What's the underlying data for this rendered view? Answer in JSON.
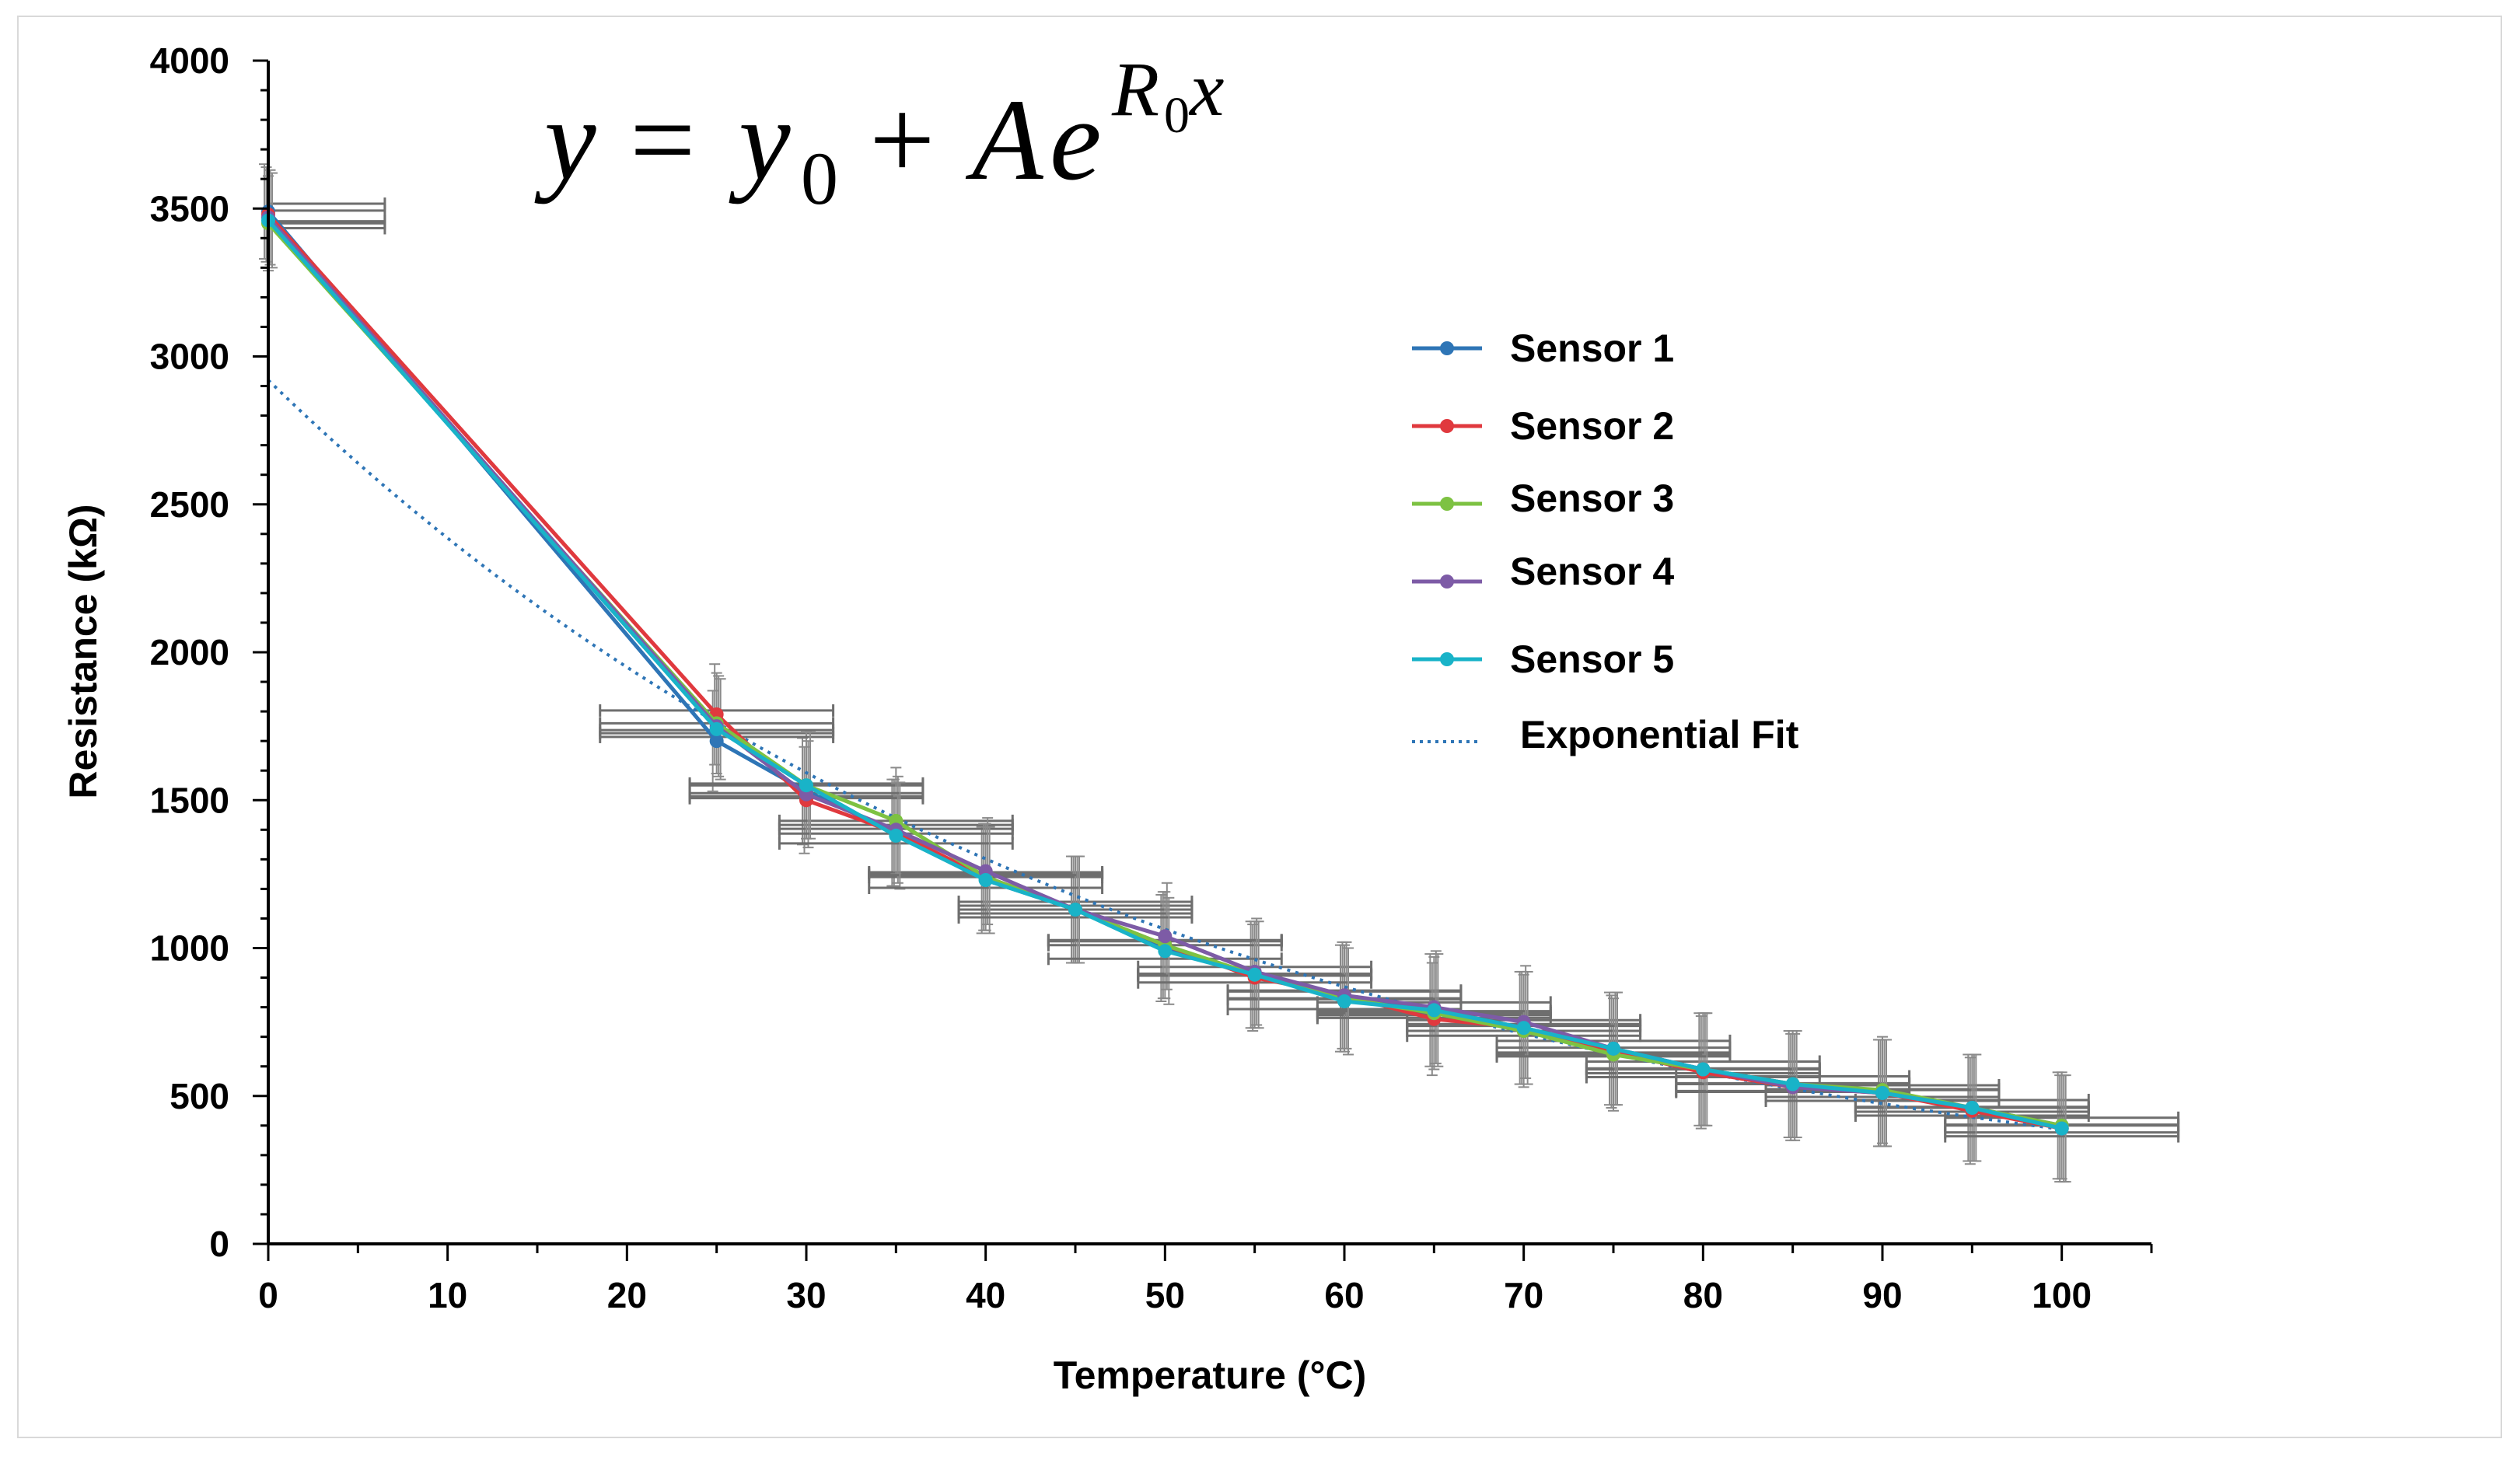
{
  "chart_data": {
    "type": "line",
    "title": "",
    "equation": {
      "lhs": "y",
      "eq": "=",
      "y": "y",
      "y_sub": "0",
      "plus": "+",
      "A": "A",
      "e": "e",
      "exp_R": "R",
      "exp_sub": "0",
      "exp_x": "x"
    },
    "xlabel": "Temperature (°C)",
    "ylabel": "Resistance (kΩ)",
    "xlim": [
      0,
      105
    ],
    "ylim": [
      0,
      4000
    ],
    "x_ticks": [
      "0",
      "10",
      "20",
      "30",
      "40",
      "50",
      "60",
      "70",
      "80",
      "90",
      "100"
    ],
    "x_tick_values": [
      0,
      10,
      20,
      30,
      40,
      50,
      60,
      70,
      80,
      90,
      100
    ],
    "y_ticks": [
      "0",
      "500",
      "1000",
      "1500",
      "2000",
      "2500",
      "3000",
      "3500",
      "4000"
    ],
    "y_tick_values": [
      0,
      500,
      1000,
      1500,
      2000,
      2500,
      3000,
      3500,
      4000
    ],
    "legend_position": "right",
    "x": [
      0,
      25,
      30,
      35,
      40,
      45,
      50,
      55,
      60,
      65,
      70,
      75,
      80,
      85,
      90,
      95,
      100
    ],
    "series": [
      {
        "name": "Sensor 1",
        "color": "#2e75b6",
        "values": [
          3490,
          1700,
          1530,
          1390,
          1230,
          1130,
          1000,
          910,
          830,
          790,
          730,
          660,
          590,
          540,
          510,
          460,
          400
        ]
      },
      {
        "name": "Sensor 2",
        "color": "#e0393e",
        "values": [
          3480,
          1790,
          1500,
          1390,
          1240,
          1130,
          1010,
          900,
          840,
          760,
          730,
          650,
          580,
          530,
          510,
          450,
          390
        ]
      },
      {
        "name": "Sensor 3",
        "color": "#7dc242",
        "values": [
          3450,
          1760,
          1550,
          1430,
          1240,
          1130,
          1010,
          910,
          830,
          780,
          720,
          640,
          590,
          540,
          520,
          460,
          400
        ]
      },
      {
        "name": "Sensor 4",
        "color": "#7d5ba6",
        "values": [
          3470,
          1750,
          1520,
          1400,
          1260,
          1130,
          1040,
          920,
          840,
          800,
          750,
          660,
          590,
          530,
          510,
          460,
          390
        ]
      },
      {
        "name": "Sensor 5",
        "color": "#19b3c8",
        "values": [
          3460,
          1740,
          1550,
          1380,
          1230,
          1130,
          990,
          910,
          820,
          790,
          730,
          660,
          590,
          540,
          510,
          460,
          390
        ]
      }
    ],
    "error_bars": {
      "x_error": [
        6.5,
        6.5,
        6.5,
        6.5,
        6.5,
        6.5,
        6.5,
        6.5,
        6.5,
        6.5,
        6.5,
        6.5,
        6.5,
        6.5,
        6.5,
        6.5,
        6.5
      ],
      "y_error": [
        160,
        170,
        180,
        180,
        180,
        180,
        180,
        180,
        180,
        190,
        190,
        190,
        190,
        180,
        180,
        180,
        180
      ]
    },
    "fit": {
      "name": "Exponential Fit",
      "color": "#2e75b6",
      "y0": 0,
      "A": 2920,
      "R0": -0.0202
    }
  }
}
